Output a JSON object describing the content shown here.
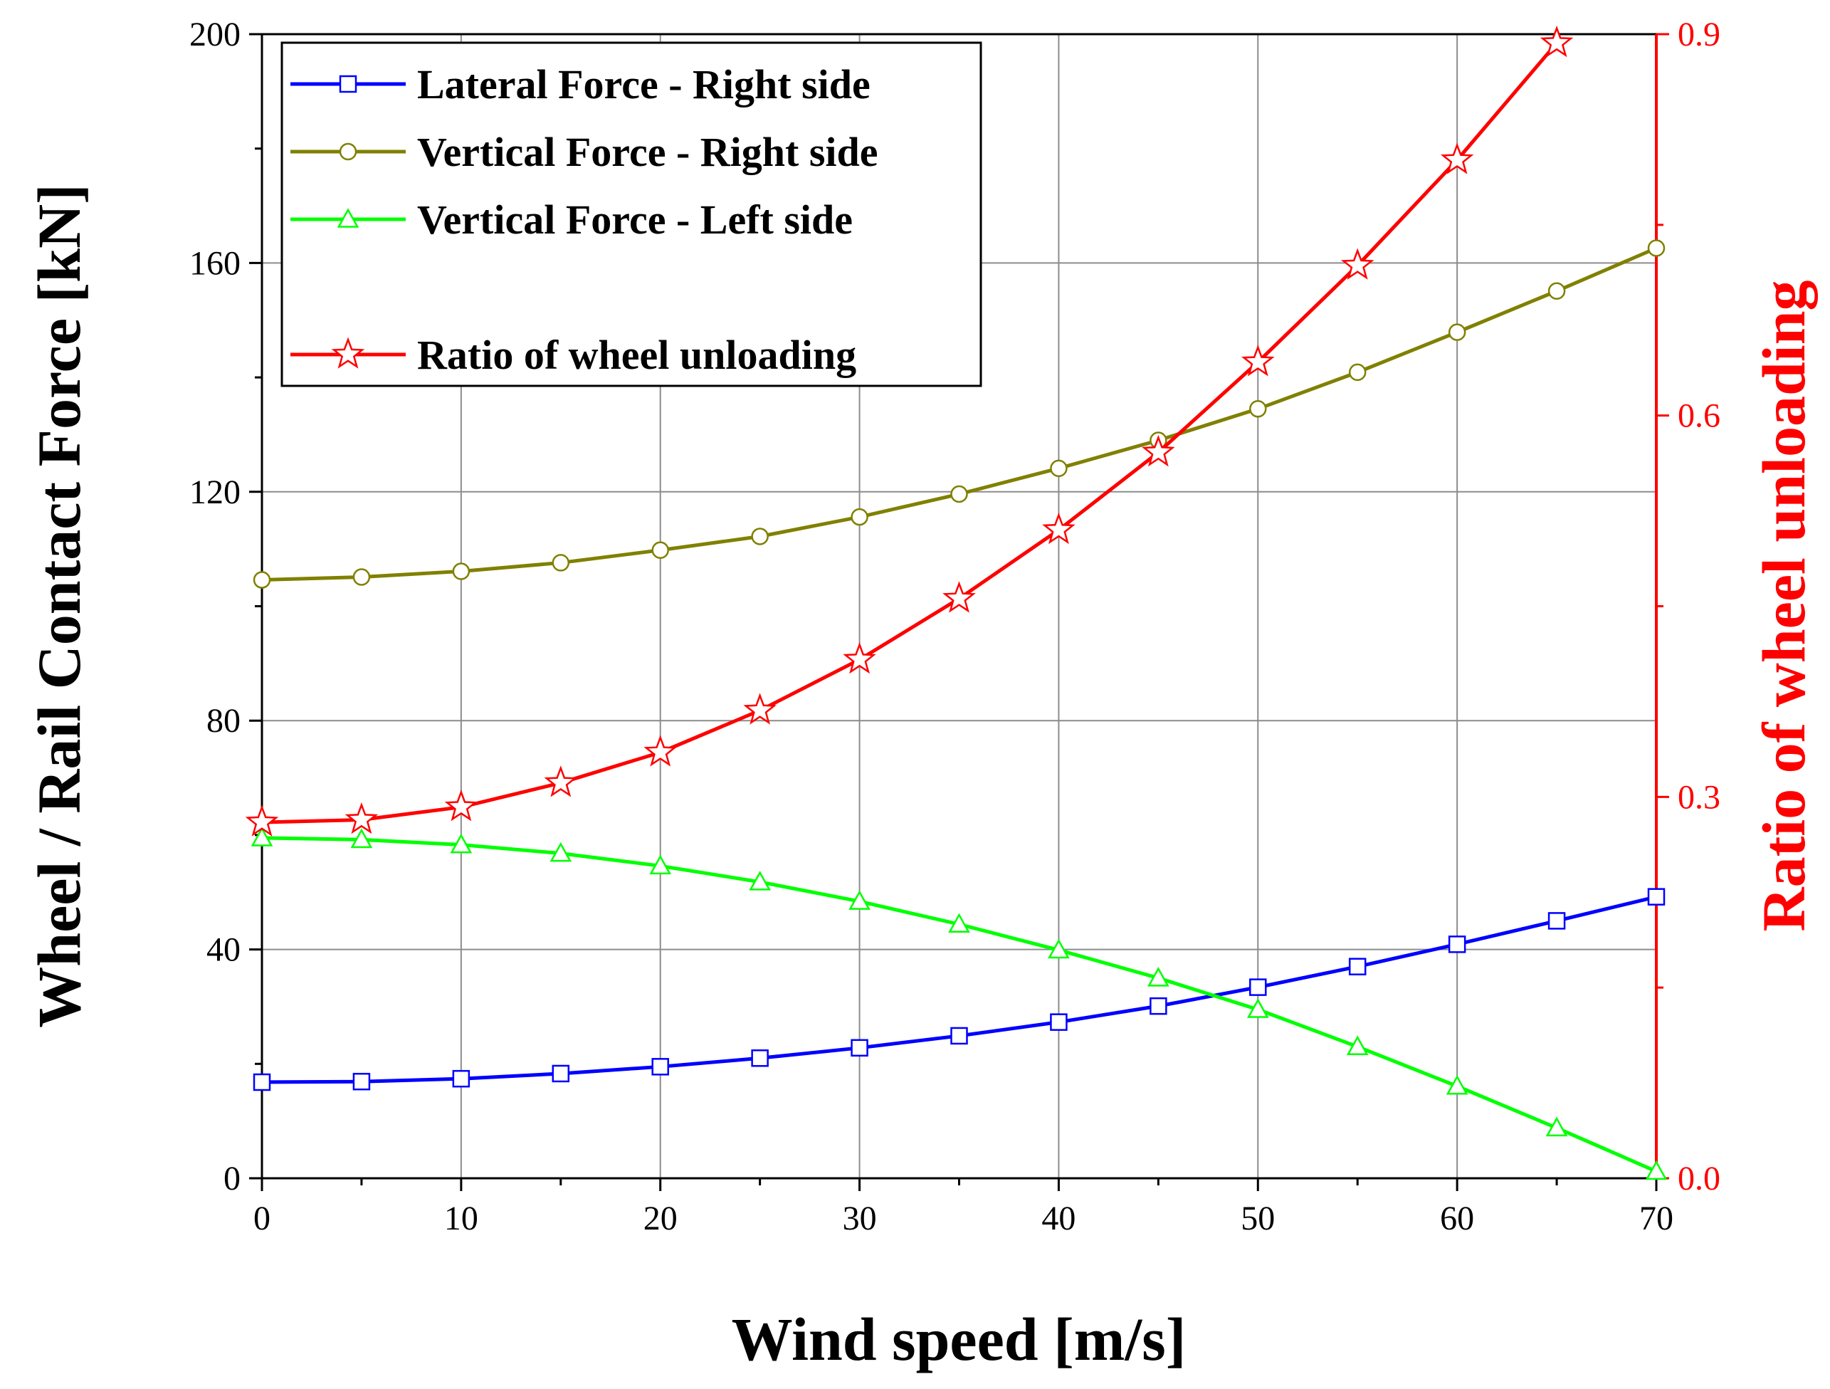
{
  "chart_data": {
    "type": "line",
    "xlabel": "Wind speed [m/s]",
    "ylabel": "Wheel / Rail Contact Force [kN]",
    "y2label": "Ratio of wheel unloading",
    "xlim": [
      0,
      70
    ],
    "ylim": [
      0,
      200
    ],
    "y2lim": [
      0.0,
      0.9
    ],
    "xticks": [
      "0",
      "10",
      "20",
      "30",
      "40",
      "50",
      "60",
      "70"
    ],
    "yticks": [
      "0",
      "40",
      "80",
      "120",
      "160",
      "200"
    ],
    "y2ticks": [
      "0.0",
      "0.3",
      "0.6",
      "0.9"
    ],
    "grid": true,
    "legend_position": "top-left",
    "x": [
      0,
      5,
      10,
      15,
      20,
      25,
      30,
      35,
      40,
      45,
      50,
      55,
      60,
      65,
      70
    ],
    "series": [
      {
        "name": "Lateral Force - Right side",
        "axis": "left",
        "color": "#0000ff",
        "marker": "square",
        "values": [
          16.8,
          16.9,
          17.4,
          18.3,
          19.5,
          21.0,
          22.8,
          24.9,
          27.3,
          30.1,
          33.4,
          37.0,
          40.9,
          45.0,
          49.2
        ]
      },
      {
        "name": "Vertical Force - Right side",
        "axis": "left",
        "color": "#808000",
        "marker": "circle",
        "values": [
          104.6,
          105.1,
          106.1,
          107.6,
          109.8,
          112.2,
          115.6,
          119.6,
          124.1,
          129.0,
          134.5,
          140.9,
          147.9,
          155.1,
          162.6
        ]
      },
      {
        "name": "Vertical Force - Left side",
        "axis": "left",
        "color": "#00ff00",
        "marker": "triangle",
        "values": [
          59.5,
          59.2,
          58.3,
          56.8,
          54.6,
          51.8,
          48.4,
          44.4,
          39.9,
          35.0,
          29.5,
          23.0,
          16.1,
          8.8,
          1.2
        ]
      },
      {
        "name": "Ratio of wheel unloading",
        "axis": "right",
        "color": "#ff0000",
        "marker": "star",
        "values": [
          0.28,
          0.282,
          0.292,
          0.311,
          0.335,
          0.368,
          0.408,
          0.456,
          0.51,
          0.571,
          0.642,
          0.718,
          0.801,
          0.893,
          null
        ]
      }
    ]
  }
}
